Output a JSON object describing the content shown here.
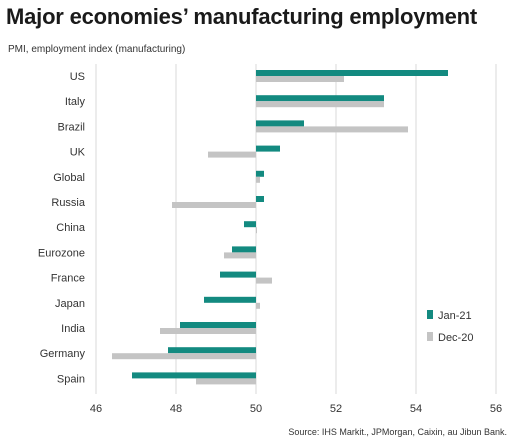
{
  "title": "Major economies’ manufacturing employment",
  "subtitle": "PMI, employment index (manufacturing)",
  "source": "Source: IHS Markit., JPMorgan, Caixin, au Jibun Bank.",
  "colors": {
    "jan21": "#138a80",
    "dec20": "#c4c4c4",
    "grid": "#d9d9d9"
  },
  "chart_data": {
    "type": "bar",
    "orientation": "horizontal",
    "categories": [
      "US",
      "Italy",
      "Brazil",
      "UK",
      "Global",
      "Russia",
      "China",
      "Eurozone",
      "France",
      "Japan",
      "India",
      "Germany",
      "Spain"
    ],
    "series": [
      {
        "name": "Jan-21",
        "color": "#138a80",
        "values": [
          54.8,
          53.2,
          51.2,
          50.6,
          50.2,
          50.2,
          49.7,
          49.4,
          49.1,
          48.7,
          48.1,
          47.8,
          46.9
        ]
      },
      {
        "name": "Dec-20",
        "color": "#c4c4c4",
        "values": [
          52.2,
          53.2,
          53.8,
          48.8,
          50.1,
          47.9,
          50.0,
          49.2,
          50.4,
          50.1,
          47.6,
          46.4,
          48.5
        ]
      }
    ],
    "xlim": [
      46,
      56
    ],
    "xticks": [
      46,
      48,
      50,
      52,
      54,
      56
    ],
    "baseline": 50,
    "grid": true,
    "legend_position": "right"
  }
}
